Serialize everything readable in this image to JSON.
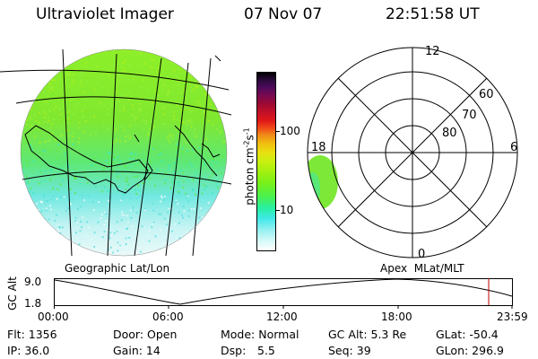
{
  "header": {
    "instrument": "Ultraviolet Imager",
    "date": "07 Nov 07",
    "time": "22:51:58 UT"
  },
  "colorbar": {
    "unit_label": "photon cm",
    "unit_exp1": "-2",
    "unit_mid": "s",
    "unit_exp2": "-1",
    "tick_high": "100",
    "tick_low": "10",
    "colors": [
      "#000000",
      "#2a0a3a",
      "#4a0a5a",
      "#7a0a50",
      "#a00a30",
      "#c0102a",
      "#e01818",
      "#f04818",
      "#f08818",
      "#f0c010",
      "#e8e010",
      "#c8f010",
      "#a0f010",
      "#78f018",
      "#48f050",
      "#28f0a0",
      "#40e8e8",
      "#90f0f0",
      "#d0f8f8",
      "#ffffff"
    ]
  },
  "geo_panel": {
    "label": "Geographic Lat/Lon"
  },
  "polar_panel": {
    "label": "Apex  MLat/MLT",
    "mlt_labels": {
      "top": "12",
      "bottom": "0",
      "left": "18",
      "right": "6"
    },
    "lat_labels": [
      "60",
      "70",
      "80"
    ]
  },
  "timeline": {
    "y_label": "GC Alt",
    "y_ticks": [
      "9.0",
      "1.8"
    ],
    "x_ticks": [
      "00:00",
      "06:00",
      "12:00",
      "18:00",
      "23:59"
    ]
  },
  "info": {
    "flt": "Flt: 1356",
    "ip": "IP: 36.0",
    "door": "Door: Open",
    "gain": "Gain: 14",
    "mode": "Mode: Normal",
    "dsp_label": "Dsp:",
    "dsp_value": "5.5",
    "gc_alt": "GC Alt: 5.3 Re",
    "seq": "Seq: 39",
    "glat": "GLat: -50.4",
    "glon": "GLon: 296.9"
  }
}
